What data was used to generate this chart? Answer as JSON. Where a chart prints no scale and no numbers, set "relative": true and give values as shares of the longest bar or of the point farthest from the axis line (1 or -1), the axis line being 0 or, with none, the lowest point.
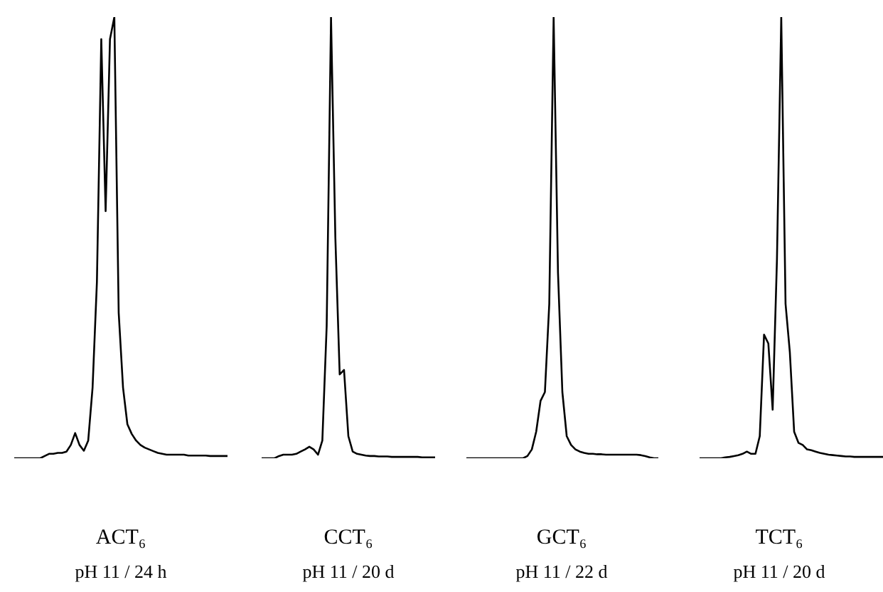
{
  "chart_data": [
    {
      "type": "line",
      "relative": true,
      "color": "#000000",
      "xlabel": "ACT₆",
      "annotations": [
        "pH 11 / 24 h"
      ],
      "categories": [
        null,
        null,
        null,
        null,
        null,
        null,
        null,
        null,
        null,
        null,
        null,
        null,
        null,
        null,
        null,
        null,
        null,
        null,
        null,
        null,
        null,
        null,
        null,
        null,
        null,
        null,
        null,
        null,
        null,
        null,
        null,
        null,
        null,
        null,
        null,
        null,
        null,
        null,
        null,
        null,
        null,
        null,
        null,
        null,
        null,
        null,
        null,
        null,
        null,
        null
      ],
      "values": [
        0,
        0,
        0,
        0,
        0,
        0,
        0,
        0.005,
        0.01,
        0.01,
        0.012,
        0.012,
        0.015,
        0.03,
        0.057,
        0.03,
        0.017,
        0.04,
        0.16,
        0.4,
        0.95,
        0.56,
        0.95,
        1.0,
        0.33,
        0.16,
        0.077,
        0.055,
        0.04,
        0.03,
        0.024,
        0.02,
        0.016,
        0.012,
        0.01,
        0.008,
        0.008,
        0.008,
        0.008,
        0.008,
        0.006,
        0.006,
        0.006,
        0.006,
        0.006,
        0.005,
        0.005,
        0.005,
        0.005,
        0.005
      ]
    },
    {
      "type": "line",
      "relative": true,
      "color": "#000000",
      "xlabel": "CCT₆",
      "annotations": [
        "pH 11 / 20 d"
      ],
      "categories": [
        null,
        null,
        null,
        null,
        null,
        null,
        null,
        null,
        null,
        null,
        null,
        null,
        null,
        null,
        null,
        null,
        null,
        null,
        null,
        null,
        null,
        null,
        null,
        null,
        null,
        null,
        null,
        null,
        null,
        null,
        null,
        null,
        null,
        null,
        null,
        null,
        null,
        null,
        null,
        null,
        null
      ],
      "values": [
        0,
        0,
        0,
        0,
        0.005,
        0.008,
        0.008,
        0.008,
        0.01,
        0.015,
        0.02,
        0.026,
        0.02,
        0.008,
        0.04,
        0.3,
        1.0,
        0.5,
        0.19,
        0.2,
        0.05,
        0.015,
        0.01,
        0.008,
        0.006,
        0.005,
        0.005,
        0.004,
        0.004,
        0.004,
        0.003,
        0.003,
        0.003,
        0.003,
        0.003,
        0.003,
        0.003,
        0.002,
        0.002,
        0.002,
        0.002
      ]
    },
    {
      "type": "line",
      "relative": true,
      "color": "#000000",
      "xlabel": "GCT₆",
      "annotations": [
        "pH 11 / 22 d"
      ],
      "categories": [
        null,
        null,
        null,
        null,
        null,
        null,
        null,
        null,
        null,
        null,
        null,
        null,
        null,
        null,
        null,
        null,
        null,
        null,
        null,
        null,
        null,
        null,
        null,
        null,
        null,
        null,
        null,
        null,
        null,
        null,
        null,
        null,
        null,
        null,
        null,
        null,
        null,
        null,
        null,
        null,
        null,
        null,
        null,
        null,
        null
      ],
      "values": [
        0,
        0,
        0,
        0,
        0,
        0,
        0,
        0,
        0,
        0,
        0,
        0,
        0,
        0,
        0.005,
        0.02,
        0.06,
        0.13,
        0.15,
        0.35,
        1.0,
        0.42,
        0.15,
        0.05,
        0.03,
        0.02,
        0.015,
        0.012,
        0.01,
        0.01,
        0.009,
        0.009,
        0.008,
        0.008,
        0.008,
        0.008,
        0.008,
        0.008,
        0.008,
        0.008,
        0.007,
        0.005,
        0.002,
        0,
        0
      ]
    },
    {
      "type": "line",
      "relative": true,
      "color": "#000000",
      "xlabel": "TCT₆",
      "annotations": [
        "pH 11 / 20 d"
      ],
      "categories": [
        null,
        null,
        null,
        null,
        null,
        null,
        null,
        null,
        null,
        null,
        null,
        null,
        null,
        null,
        null,
        null,
        null,
        null,
        null,
        null,
        null,
        null,
        null,
        null,
        null,
        null,
        null,
        null,
        null,
        null,
        null,
        null,
        null,
        null,
        null,
        null,
        null,
        null,
        null,
        null,
        null,
        null,
        null,
        null
      ],
      "values": [
        0,
        0,
        0,
        0,
        0,
        0,
        0.002,
        0.003,
        0.005,
        0.007,
        0.01,
        0.015,
        0.01,
        0.01,
        0.05,
        0.28,
        0.26,
        0.11,
        0.45,
        1.0,
        0.35,
        0.24,
        0.06,
        0.035,
        0.03,
        0.02,
        0.018,
        0.015,
        0.012,
        0.01,
        0.008,
        0.007,
        0.006,
        0.005,
        0.004,
        0.004,
        0.003,
        0.003,
        0.003,
        0.003,
        0.003,
        0.003,
        0.003,
        0.003
      ]
    }
  ]
}
